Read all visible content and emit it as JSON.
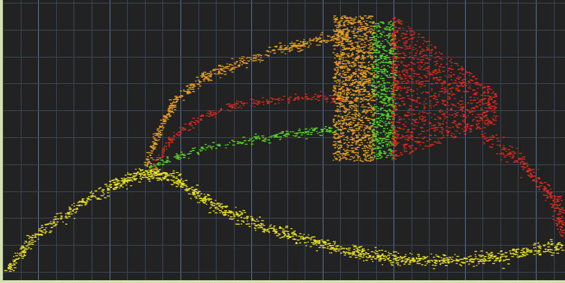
{
  "colors": {
    "background": "#222222",
    "frame": "#d4e0b0",
    "grid_minor": "#3a4858",
    "grid_major": "#5878a8",
    "yellow": "#e8e020",
    "orange": "#e8a020",
    "red": "#dd2a1c",
    "green": "#58d820"
  },
  "chart_data": {
    "type": "scatter",
    "grid": true,
    "series": [
      {
        "color_key": "yellow",
        "values": []
      },
      {
        "color_key": "orange",
        "values": []
      },
      {
        "color_key": "red",
        "values": []
      },
      {
        "color_key": "green",
        "values": []
      }
    ]
  }
}
